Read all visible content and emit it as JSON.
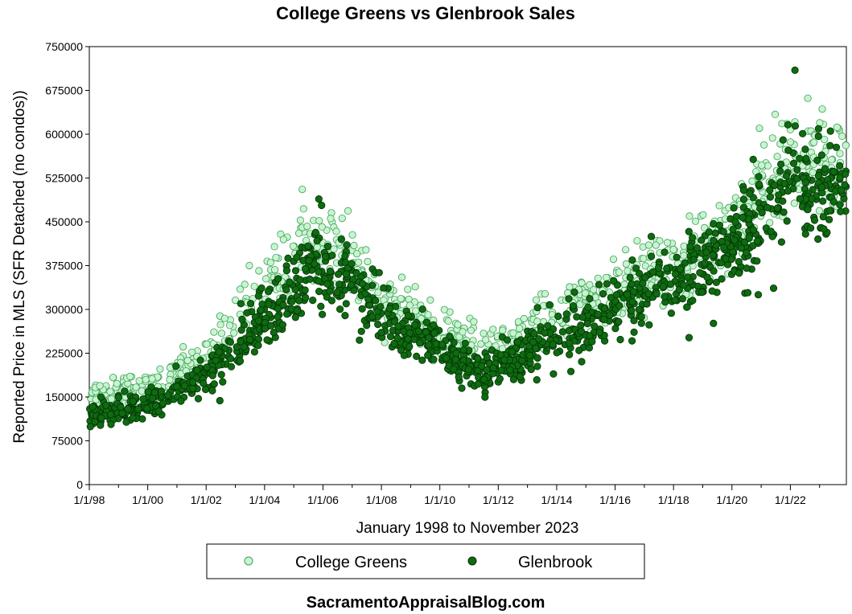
{
  "chart_data": {
    "type": "scatter",
    "title": "College Greens vs Glenbrook Sales",
    "xlabel": "January 1998 to November 2023",
    "ylabel": "Reported Price in MLS (SFR Detached (no condos))",
    "footer": "SacramentoAppraisalBlog.com",
    "x_range": [
      "1998-01",
      "2023-11"
    ],
    "ylim": [
      0,
      750000
    ],
    "y_ticks": [
      "0",
      "75000",
      "150000",
      "225000",
      "300000",
      "375000",
      "450000",
      "525000",
      "600000",
      "675000",
      "750000"
    ],
    "x_tick_labels": [
      "1/1/98",
      "1/1/00",
      "1/1/02",
      "1/1/04",
      "1/1/06",
      "1/1/08",
      "1/1/10",
      "1/1/12",
      "1/1/14",
      "1/1/16",
      "1/1/18",
      "1/1/20",
      "1/1/22"
    ],
    "grid": false,
    "legend_position": "bottom",
    "series": [
      {
        "name": "College Greens",
        "color": "#c8f5cf",
        "edge": "#3fa05a",
        "trend": [
          [
            1998.0,
            150000
          ],
          [
            1999.0,
            160000
          ],
          [
            2000.0,
            165000
          ],
          [
            2001.0,
            185000
          ],
          [
            2002.0,
            225000
          ],
          [
            2003.0,
            270000
          ],
          [
            2004.0,
            330000
          ],
          [
            2004.8,
            380000
          ],
          [
            2005.5,
            420000
          ],
          [
            2006.3,
            415000
          ],
          [
            2007.0,
            380000
          ],
          [
            2007.8,
            325000
          ],
          [
            2008.5,
            300000
          ],
          [
            2009.2,
            285000
          ],
          [
            2010.0,
            265000
          ],
          [
            2010.8,
            245000
          ],
          [
            2011.5,
            240000
          ],
          [
            2012.5,
            240000
          ],
          [
            2013.5,
            275000
          ],
          [
            2014.5,
            300000
          ],
          [
            2015.5,
            320000
          ],
          [
            2016.5,
            345000
          ],
          [
            2017.5,
            370000
          ],
          [
            2018.5,
            390000
          ],
          [
            2019.5,
            420000
          ],
          [
            2020.5,
            465000
          ],
          [
            2021.2,
            520000
          ],
          [
            2022.0,
            570000
          ],
          [
            2022.6,
            560000
          ],
          [
            2023.3,
            545000
          ],
          [
            2023.9,
            540000
          ]
        ]
      },
      {
        "name": "Glenbrook",
        "color": "#0f6a12",
        "edge": "#003300",
        "trend": [
          [
            1998.0,
            120000
          ],
          [
            1999.0,
            128000
          ],
          [
            2000.0,
            135000
          ],
          [
            2001.0,
            155000
          ],
          [
            2002.0,
            190000
          ],
          [
            2003.0,
            235000
          ],
          [
            2004.0,
            290000
          ],
          [
            2004.8,
            325000
          ],
          [
            2005.5,
            375000
          ],
          [
            2006.3,
            365000
          ],
          [
            2007.0,
            340000
          ],
          [
            2007.8,
            300000
          ],
          [
            2008.5,
            265000
          ],
          [
            2009.2,
            255000
          ],
          [
            2010.0,
            235000
          ],
          [
            2010.8,
            205000
          ],
          [
            2011.5,
            185000
          ],
          [
            2012.5,
            215000
          ],
          [
            2013.5,
            250000
          ],
          [
            2014.5,
            265000
          ],
          [
            2015.5,
            285000
          ],
          [
            2016.5,
            315000
          ],
          [
            2017.5,
            345000
          ],
          [
            2018.5,
            365000
          ],
          [
            2019.5,
            380000
          ],
          [
            2020.5,
            425000
          ],
          [
            2021.2,
            480000
          ],
          [
            2022.0,
            530000
          ],
          [
            2022.6,
            500000
          ],
          [
            2023.3,
            505000
          ],
          [
            2023.9,
            515000
          ]
        ]
      }
    ]
  }
}
